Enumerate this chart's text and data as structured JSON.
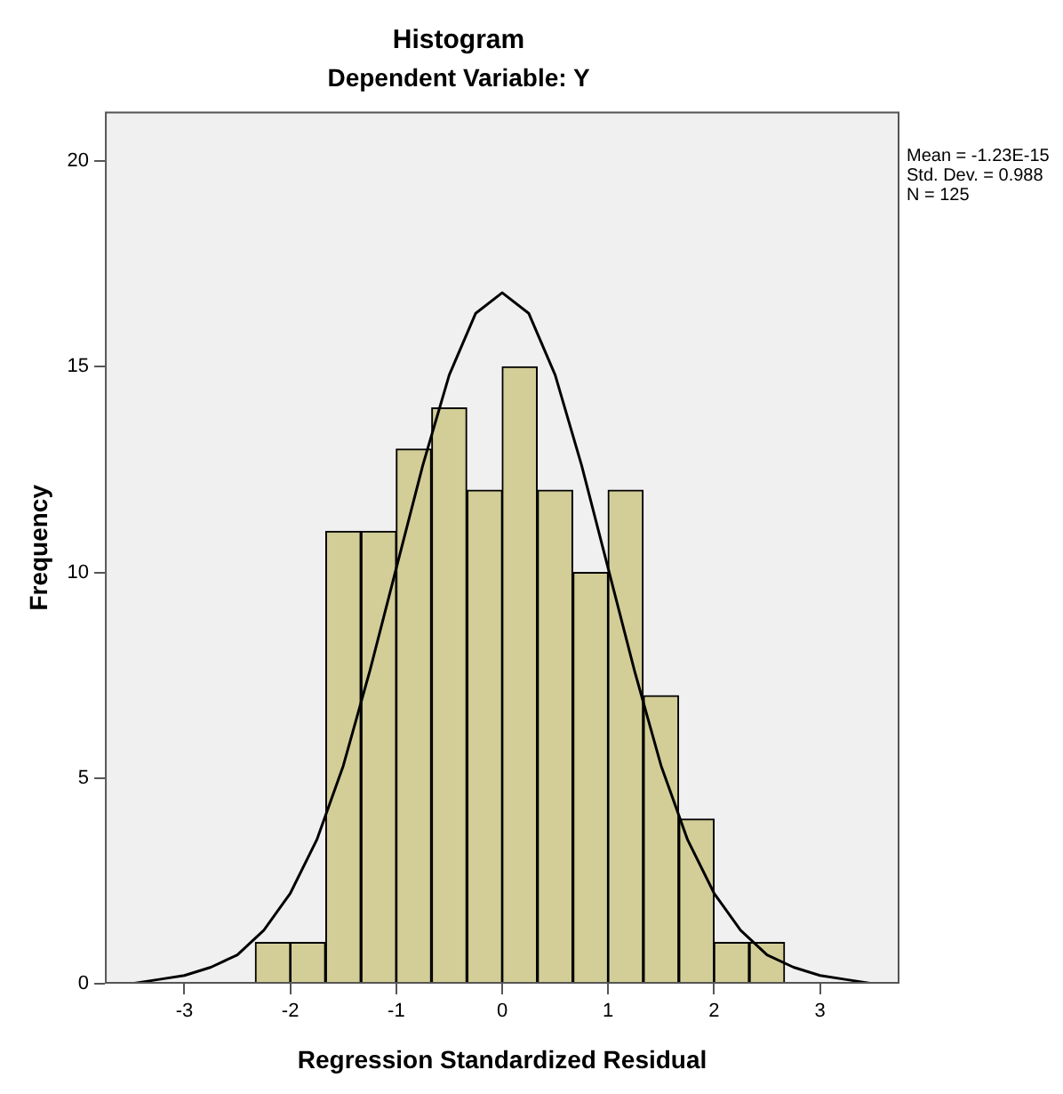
{
  "chart_data": {
    "type": "histogram",
    "title": "Histogram",
    "subtitle": "Dependent Variable: Y",
    "xlabel": "Regression Standardized Residual",
    "ylabel": "Frequency",
    "bins": [
      -2.33,
      -2,
      -1.67,
      -1.33,
      -1,
      -0.67,
      -0.33,
      0,
      0.33,
      0.67,
      1,
      1.33,
      1.67,
      2,
      2.33,
      2.67
    ],
    "values": [
      1,
      1,
      11,
      11,
      13,
      14,
      12,
      15,
      12,
      10,
      12,
      7,
      4,
      1,
      1
    ],
    "color": "#d3ce97",
    "series": [
      {
        "type": "line",
        "color": "#000000",
        "x": [
          -3.75,
          -3.5,
          -3.25,
          -3,
          -2.75,
          -2.5,
          -2.25,
          -2,
          -1.75,
          -1.5,
          -1.25,
          -1,
          -0.75,
          -0.5,
          -0.25,
          0,
          0.25,
          0.5,
          0.75,
          1,
          1.25,
          1.5,
          1.75,
          2,
          2.25,
          2.5,
          2.75,
          3,
          3.25,
          3.5,
          3.75
        ],
        "values": [
          0,
          0,
          0.1,
          0.2,
          0.4,
          0.7,
          1.3,
          2.2,
          3.5,
          5.3,
          7.6,
          10.1,
          12.6,
          14.8,
          16.3,
          16.8,
          16.3,
          14.8,
          12.6,
          10.1,
          7.6,
          5.3,
          3.5,
          2.2,
          1.3,
          0.7,
          0.4,
          0.2,
          0.1,
          0,
          0
        ]
      }
    ],
    "xlim": [
      -3.75,
      3.75
    ],
    "xticks": [
      -3,
      -2,
      -1,
      0,
      1,
      2,
      3
    ],
    "ylim": [
      0,
      21.2
    ],
    "yticks": [
      0,
      5,
      10,
      15,
      20
    ],
    "grid": false,
    "legend": false,
    "marker": "none",
    "annotations": [
      "Mean = -1.23E-15",
      "Std. Dev. = 0.988",
      "N = 125"
    ]
  }
}
